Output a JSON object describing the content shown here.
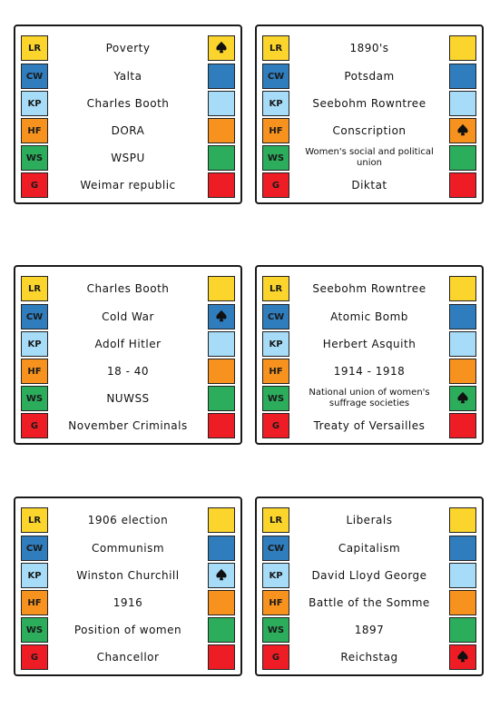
{
  "codes": [
    {
      "label": "LR",
      "color": "#fbd42c"
    },
    {
      "label": "CW",
      "color": "#2f7dbd"
    },
    {
      "label": "KP",
      "color": "#a6dcf7"
    },
    {
      "label": "HF",
      "color": "#f7921e"
    },
    {
      "label": "WS",
      "color": "#2bad5c"
    },
    {
      "label": "G",
      "color": "#ee1c24"
    }
  ],
  "cards": [
    {
      "terms": [
        "Poverty",
        "Yalta",
        "Charles Booth",
        "DORA",
        "WSPU",
        "Weimar republic"
      ],
      "spade_row": 0
    },
    {
      "terms": [
        "1890's",
        "Potsdam",
        "Seebohm Rowntree",
        "Conscription",
        "Women's social and political union",
        "Diktat"
      ],
      "spade_row": 3
    },
    {
      "terms": [
        "Charles Booth",
        "Cold War",
        "Adolf Hitler",
        "18 - 40",
        "NUWSS",
        "November Criminals"
      ],
      "spade_row": 1
    },
    {
      "terms": [
        "Seebohm Rowntree",
        "Atomic Bomb",
        "Herbert Asquith",
        "1914 - 1918",
        "National union of women's suffrage societies",
        "Treaty of Versailles"
      ],
      "spade_row": 4
    },
    {
      "terms": [
        "1906 election",
        "Communism",
        "Winston Churchill",
        "1916",
        "Position of women",
        "Chancellor"
      ],
      "spade_row": 2
    },
    {
      "terms": [
        "Liberals",
        "Capitalism",
        "David Lloyd George",
        "Battle of the Somme",
        "1897",
        "Reichstag"
      ],
      "spade_row": 5
    }
  ]
}
